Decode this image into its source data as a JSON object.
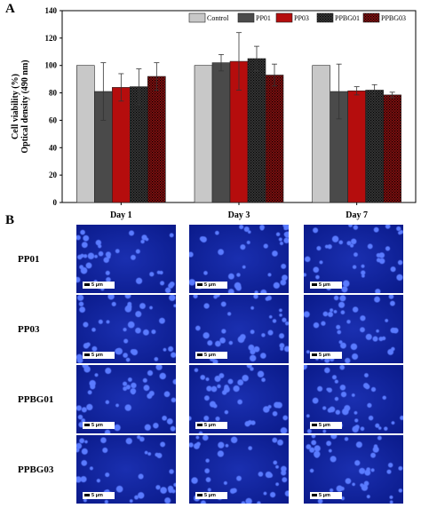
{
  "panel_labels": {
    "a": "A",
    "b": "B"
  },
  "chart_data": {
    "type": "bar",
    "categories": [
      "Day 1",
      "Day 3",
      "Day 7"
    ],
    "ylabel_lines": [
      "Cell viability (%)",
      "Optical density (490 nm)"
    ],
    "ylim": [
      0,
      140
    ],
    "yticks": [
      0,
      20,
      40,
      60,
      80,
      100,
      120,
      140
    ],
    "legend_position": "top-right",
    "series": [
      {
        "name": "Control",
        "color": "#c8c8c8",
        "pattern": "solid",
        "values": [
          100,
          100,
          100
        ],
        "errors": [
          0,
          0,
          0
        ]
      },
      {
        "name": "PP01",
        "color": "#4a4a4a",
        "pattern": "solid",
        "values": [
          81,
          102,
          81
        ],
        "errors": [
          21,
          6,
          20
        ]
      },
      {
        "name": "PP03",
        "color": "#b50d0d",
        "pattern": "solid",
        "values": [
          84,
          103,
          81.5
        ],
        "errors": [
          10,
          21,
          3
        ]
      },
      {
        "name": "PPBG01",
        "color": "#3a3a3a",
        "pattern": "dots",
        "values": [
          84.5,
          105,
          82
        ],
        "errors": [
          13,
          9,
          4
        ]
      },
      {
        "name": "PPBG03",
        "color": "#8a1010",
        "pattern": "dots",
        "values": [
          92,
          93,
          78.5
        ],
        "errors": [
          10,
          8,
          2
        ]
      }
    ]
  },
  "microscopy": {
    "rows": [
      "PP01",
      "PP03",
      "PPBG01",
      "PPBG03"
    ],
    "scale_label": "5 μm",
    "image_color": "#0a1a8a"
  }
}
